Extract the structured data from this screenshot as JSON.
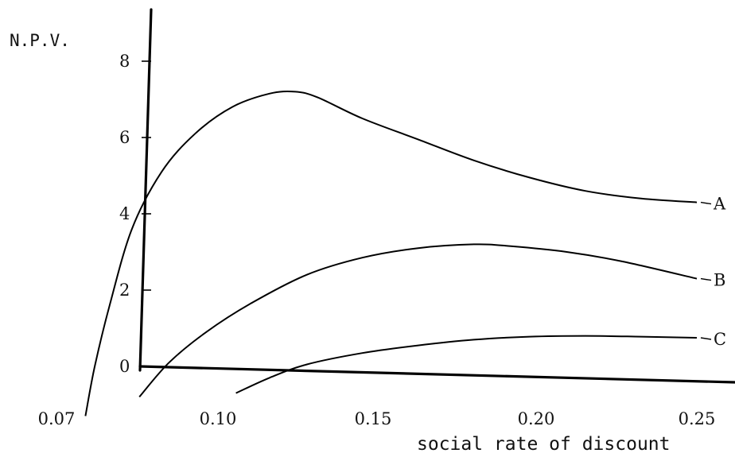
{
  "chart_data": {
    "type": "line",
    "xlabel": "social rate of discount",
    "ylabel": "N.P.V.",
    "xlim": [
      0.07,
      0.25
    ],
    "ylim": [
      0,
      8
    ],
    "x_ticks": [
      "0.07",
      "0.10",
      "0.15",
      "0.20",
      "0.25"
    ],
    "y_ticks": [
      "0",
      "2",
      "4",
      "6",
      "8"
    ],
    "grid": false,
    "series": [
      {
        "name": "A",
        "x": [
          0.0855,
          0.088,
          0.092,
          0.098,
          0.106,
          0.115,
          0.125,
          0.135,
          0.142,
          0.148,
          0.16,
          0.175,
          0.19,
          0.205,
          0.22,
          0.235,
          0.25
        ],
        "y": [
          -1.3,
          0.0,
          1.6,
          3.6,
          5.1,
          6.1,
          6.8,
          7.15,
          7.2,
          7.05,
          6.5,
          5.95,
          5.4,
          4.95,
          4.6,
          4.4,
          4.3
        ]
      },
      {
        "name": "B",
        "x": [
          0.1,
          0.108,
          0.118,
          0.13,
          0.145,
          0.16,
          0.175,
          0.19,
          0.2,
          0.215,
          0.23,
          0.25
        ],
        "y": [
          -0.8,
          0.1,
          0.9,
          1.65,
          2.4,
          2.85,
          3.1,
          3.2,
          3.15,
          3.0,
          2.75,
          2.3
        ]
      },
      {
        "name": "C",
        "x": [
          0.126,
          0.135,
          0.145,
          0.16,
          0.175,
          0.19,
          0.205,
          0.22,
          0.235,
          0.25
        ],
        "y": [
          -0.7,
          -0.3,
          0.05,
          0.35,
          0.55,
          0.7,
          0.78,
          0.8,
          0.78,
          0.75
        ]
      }
    ],
    "curve_labels": [
      "A",
      "B",
      "C"
    ]
  }
}
